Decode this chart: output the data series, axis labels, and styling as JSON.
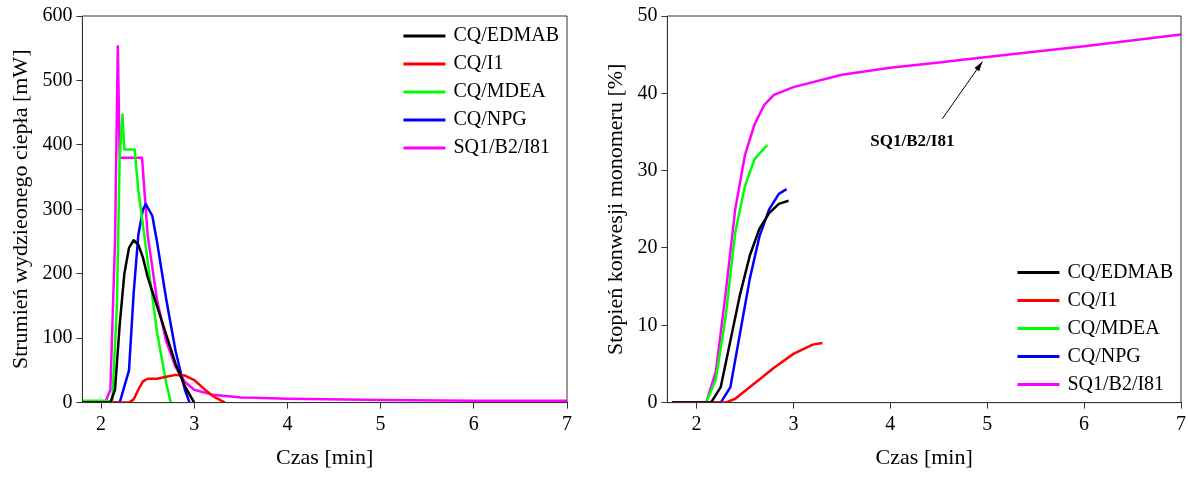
{
  "chart_data": [
    {
      "type": "line",
      "xlabel": "Czas [min]",
      "ylabel": "Strumień wydzieonego ciepła [mW]",
      "xlim": [
        1.8,
        7
      ],
      "xticks": [
        2,
        3,
        4,
        5,
        6,
        7
      ],
      "ylim": [
        0,
        600
      ],
      "yticks": [
        0,
        100,
        200,
        300,
        400,
        500,
        600
      ],
      "grid": false,
      "marker": "none",
      "legend": "top right",
      "series": [
        {
          "name": "CQ/EDMAB",
          "color": "#000000",
          "x": [
            1.8,
            2.1,
            2.15,
            2.2,
            2.25,
            2.3,
            2.35,
            2.4,
            2.45,
            2.5,
            2.6,
            2.7,
            2.8,
            2.9,
            3.0
          ],
          "values": [
            0,
            0,
            20,
            120,
            200,
            240,
            252,
            245,
            225,
            195,
            150,
            105,
            60,
            25,
            0
          ]
        },
        {
          "name": "CQ/I1",
          "color": "#ff0000",
          "x": [
            1.8,
            2.3,
            2.35,
            2.4,
            2.45,
            2.5,
            2.6,
            2.7,
            2.8,
            2.9,
            3.0,
            3.1,
            3.2,
            3.33
          ],
          "values": [
            0,
            0,
            5,
            20,
            33,
            37,
            37,
            40,
            43,
            42,
            35,
            22,
            10,
            0
          ]
        },
        {
          "name": "CQ/MDEA",
          "color": "#00ff00",
          "x": [
            1.8,
            2.07,
            2.12,
            2.17,
            2.2,
            2.23,
            2.25,
            2.36,
            2.4,
            2.5,
            2.6,
            2.7,
            2.75
          ],
          "values": [
            3,
            3,
            0,
            150,
            380,
            447,
            393,
            393,
            330,
            220,
            110,
            30,
            0
          ]
        },
        {
          "name": "CQ/NPG",
          "color": "#0000ff",
          "x": [
            1.8,
            2.2,
            2.3,
            2.35,
            2.4,
            2.45,
            2.48,
            2.55,
            2.6,
            2.7,
            2.8,
            2.9,
            2.95
          ],
          "values": [
            0,
            0,
            50,
            170,
            260,
            300,
            308,
            290,
            250,
            160,
            80,
            20,
            0
          ]
        },
        {
          "name": "SQ1/B2/I81",
          "color": "#ff00ff",
          "x": [
            1.8,
            2.05,
            2.1,
            2.15,
            2.18,
            2.2,
            2.44,
            2.5,
            2.6,
            2.7,
            2.8,
            2.9,
            3.0,
            3.2,
            3.5,
            4,
            5,
            6,
            7
          ],
          "values": [
            2,
            2,
            20,
            250,
            553,
            380,
            380,
            260,
            160,
            95,
            55,
            32,
            20,
            12,
            8,
            6,
            4,
            3,
            3
          ]
        }
      ]
    },
    {
      "type": "line",
      "xlabel": "Czas [min]",
      "ylabel": "Stopień konwesji monomeru [%]",
      "xlim": [
        1.7,
        7
      ],
      "xticks": [
        2,
        3,
        4,
        5,
        6,
        7
      ],
      "ylim": [
        0,
        50
      ],
      "yticks": [
        0,
        10,
        20,
        30,
        40,
        50
      ],
      "grid": false,
      "marker": "none",
      "legend": "bottom right",
      "annotations": [
        {
          "text": "SQ1/B2/I81",
          "x": 4.95,
          "y": 44.6
        }
      ],
      "series": [
        {
          "name": "CQ/EDMAB",
          "color": "#000000",
          "x": [
            1.75,
            2.15,
            2.25,
            2.35,
            2.45,
            2.55,
            2.65,
            2.75,
            2.85,
            2.95
          ],
          "values": [
            0,
            0,
            2,
            8,
            14,
            19,
            22.5,
            24.5,
            25.7,
            26.1
          ]
        },
        {
          "name": "CQ/I1",
          "color": "#ff0000",
          "x": [
            1.75,
            2.3,
            2.4,
            2.6,
            2.8,
            3.0,
            3.2,
            3.3
          ],
          "values": [
            0,
            0,
            0.5,
            2.5,
            4.5,
            6.3,
            7.5,
            7.7
          ]
        },
        {
          "name": "CQ/MDEA",
          "color": "#00ff00",
          "x": [
            1.75,
            2.1,
            2.2,
            2.3,
            2.4,
            2.5,
            2.6,
            2.73
          ],
          "values": [
            0,
            0,
            3,
            11,
            22,
            28,
            31.5,
            33.3
          ]
        },
        {
          "name": "CQ/NPG",
          "color": "#0000ff",
          "x": [
            1.75,
            2.25,
            2.35,
            2.45,
            2.55,
            2.65,
            2.75,
            2.85,
            2.93
          ],
          "values": [
            0,
            0,
            2,
            9,
            16,
            21.5,
            25,
            27,
            27.6
          ]
        },
        {
          "name": "SQ1/B2/I81",
          "color": "#ff00ff",
          "x": [
            1.75,
            2.1,
            2.2,
            2.3,
            2.4,
            2.5,
            2.6,
            2.7,
            2.8,
            3.0,
            3.5,
            4,
            4.5,
            5,
            6,
            7
          ],
          "values": [
            0,
            0,
            4,
            14,
            25,
            32,
            36,
            38.5,
            39.8,
            40.8,
            42.4,
            43.3,
            44,
            44.7,
            46.1,
            47.6
          ]
        }
      ]
    }
  ]
}
